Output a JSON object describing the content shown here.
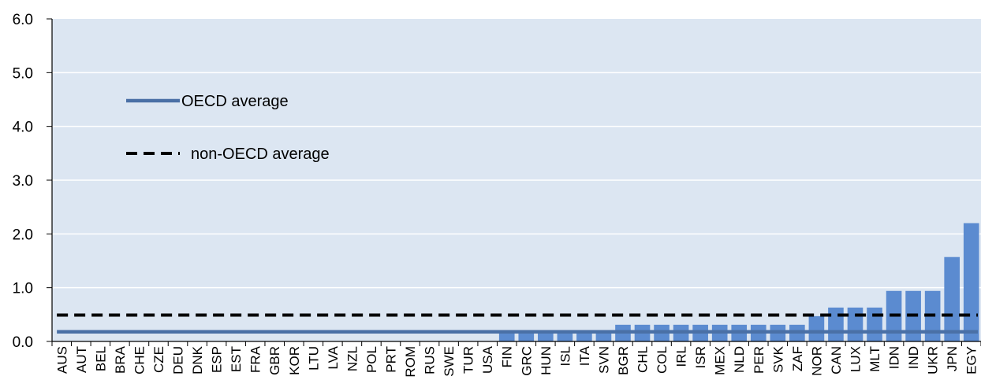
{
  "chart_data": {
    "type": "bar",
    "title": "",
    "xlabel": "",
    "ylabel": "",
    "ylim": [
      0,
      6
    ],
    "yticks": [
      "0.0",
      "1.0",
      "2.0",
      "3.0",
      "4.0",
      "5.0",
      "6.0"
    ],
    "grid": true,
    "legend_position": "top-left",
    "categories": [
      "AUS",
      "AUT",
      "BEL",
      "BRA",
      "CHE",
      "CZE",
      "DEU",
      "DNK",
      "ESP",
      "EST",
      "FRA",
      "GBR",
      "KOR",
      "LTU",
      "LVA",
      "NZL",
      "POL",
      "PRT",
      "ROM",
      "RUS",
      "SWE",
      "TUR",
      "USA",
      "FIN",
      "GRC",
      "HUN",
      "ISL",
      "ITA",
      "SVN",
      "BGR",
      "CHL",
      "COL",
      "IRL",
      "ISR",
      "MEX",
      "NLD",
      "PER",
      "SVK",
      "ZAF",
      "NOR",
      "CAN",
      "LUX",
      "MLT",
      "IDN",
      "IND",
      "UKR",
      "JPN",
      "EGY"
    ],
    "values": [
      0,
      0,
      0,
      0,
      0,
      0,
      0,
      0,
      0,
      0,
      0,
      0,
      0,
      0,
      0,
      0,
      0,
      0,
      0,
      0,
      0,
      0,
      0,
      0.16,
      0.16,
      0.16,
      0.16,
      0.16,
      0.16,
      0.31,
      0.31,
      0.31,
      0.31,
      0.31,
      0.31,
      0.31,
      0.31,
      0.31,
      0.31,
      0.47,
      0.63,
      0.63,
      0.63,
      0.94,
      0.94,
      0.94,
      1.57,
      2.2
    ],
    "reference_lines": [
      {
        "name": "OECD average",
        "value": 0.18,
        "style": "solid",
        "color": "#4A70A6"
      },
      {
        "name": "non-OECD average",
        "value": 0.49,
        "style": "dashed",
        "color": "#000000"
      }
    ],
    "colors": {
      "bar": "#5B8BD0",
      "plot_background": "#DCE6F2",
      "gridline": "#ffffff"
    }
  }
}
